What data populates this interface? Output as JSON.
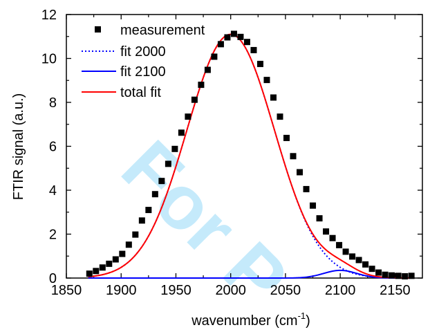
{
  "chart_data": {
    "type": "scatter",
    "xlabel": "wavenumber (cm",
    "xlabel_superscript": "-1",
    "xlabel_suffix": ")",
    "ylabel": "FTIR signal (a.u.)",
    "xlim": [
      1850,
      2175
    ],
    "ylim": [
      0,
      12
    ],
    "x_ticks": [
      1850,
      1900,
      1950,
      2000,
      2050,
      2100,
      2150
    ],
    "y_ticks": [
      0,
      2,
      4,
      6,
      8,
      10,
      12
    ],
    "grid": false,
    "legend_position": "top-left",
    "watermark": "For P",
    "colors": {
      "measurement": "#000000",
      "fit_2000": "#0000ff",
      "fit_2100": "#0000ff",
      "total_fit": "#ff0000",
      "watermark": "#bfe8fb"
    },
    "series": [
      {
        "name": "measurement",
        "kind": "markers",
        "x": [
          1871,
          1877,
          1883,
          1889,
          1895,
          1901,
          1907,
          1913,
          1919,
          1925,
          1931,
          1937,
          1943,
          1949,
          1955,
          1961,
          1967,
          1973,
          1979,
          1985,
          1991,
          1997,
          2003,
          2009,
          2015,
          2021,
          2027,
          2033,
          2039,
          2045,
          2051,
          2057,
          2063,
          2069,
          2075,
          2081,
          2087,
          2093,
          2099,
          2105,
          2111,
          2117,
          2123,
          2129,
          2135,
          2141,
          2147,
          2153,
          2159,
          2165
        ],
        "y": [
          0.2,
          0.32,
          0.48,
          0.65,
          0.85,
          1.1,
          1.52,
          1.98,
          2.62,
          3.1,
          3.82,
          4.42,
          5.2,
          5.88,
          6.62,
          7.35,
          8.12,
          8.8,
          9.48,
          10.08,
          10.65,
          10.96,
          11.12,
          10.98,
          10.75,
          10.38,
          9.75,
          9.02,
          8.22,
          7.35,
          6.38,
          5.55,
          4.82,
          4.05,
          3.3,
          2.72,
          2.12,
          1.82,
          1.5,
          1.2,
          0.98,
          0.82,
          0.62,
          0.42,
          0.25,
          0.15,
          0.12,
          0.1,
          0.08,
          0.1
        ]
      },
      {
        "name": "fit 2000",
        "kind": "dotted-line",
        "center": 2000,
        "amplitude": 11.1,
        "sigma": 40,
        "x_range": [
          1870,
          2165
        ]
      },
      {
        "name": "fit 2100",
        "kind": "solid-line",
        "center": 2100,
        "amplitude": 0.35,
        "sigma": 15,
        "x_range": [
          1870,
          2165
        ]
      },
      {
        "name": "total fit",
        "kind": "solid-line",
        "components": [
          "fit 2000",
          "fit 2100"
        ],
        "x_range": [
          1870,
          2165
        ]
      }
    ]
  }
}
